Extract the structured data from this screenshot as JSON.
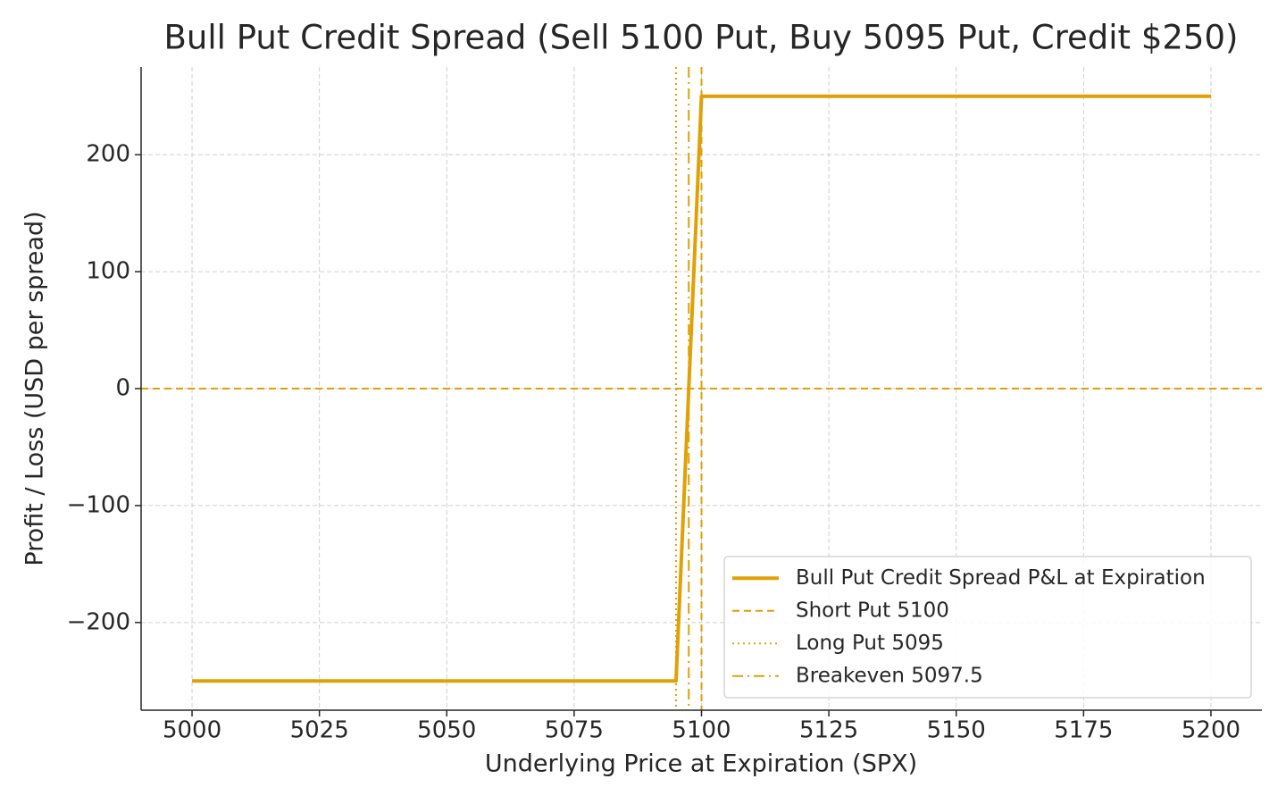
{
  "chart_data": {
    "type": "line",
    "title": "Bull Put Credit Spread (Sell 5100 Put, Buy 5095 Put, Credit $250)",
    "x_label": "Underlying Price at Expiration (SPX)",
    "y_label": "Profit / Loss (USD per spread)",
    "x": [
      5000,
      5095,
      5100,
      5200
    ],
    "series": [
      {
        "name": "Bull Put Credit Spread P&L at Expiration",
        "color": "#e0a106",
        "values": [
          -250,
          -250,
          250,
          250
        ]
      }
    ],
    "vertical_lines": [
      {
        "name": "Short Put 5100",
        "value": 5100,
        "style": "dashed",
        "color": "#e0a106"
      },
      {
        "name": "Long Put 5095",
        "value": 5095,
        "style": "dotted",
        "color": "#e0a106"
      },
      {
        "name": "Breakeven 5097.5",
        "value": 5097.5,
        "style": "dashdot",
        "color": "#e0a106"
      }
    ],
    "horizontal_lines": [
      {
        "value": 0,
        "style": "dashed",
        "color": "#e0a106"
      }
    ],
    "xlim": [
      4990,
      5210
    ],
    "ylim": [
      -275,
      275
    ],
    "xticks": [
      5000,
      5025,
      5050,
      5075,
      5100,
      5125,
      5150,
      5175,
      5200
    ],
    "yticks": [
      {
        "value": -200,
        "label": "−200"
      },
      {
        "value": -100,
        "label": "−100"
      },
      0,
      100,
      200
    ],
    "grid": true,
    "legend": "lower right"
  }
}
